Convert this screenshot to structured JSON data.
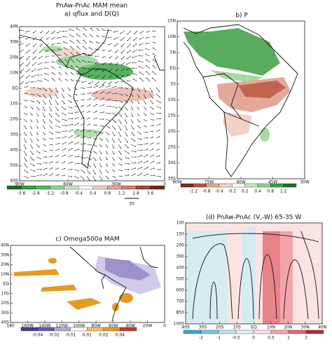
{
  "panels": {
    "a": {
      "title": "PnAw-PnAc MAM mean",
      "subtitle": "a) qflux and D(Q)",
      "yticks": [
        "40N",
        "30N",
        "20N",
        "10N",
        "EQ",
        "10S",
        "20S",
        "30S",
        "40S",
        "50S",
        "60S"
      ],
      "xticks": [
        "90W",
        "60W",
        "30W",
        "0"
      ],
      "colorbar": [
        "-3.6",
        "-2.8",
        "-1.2",
        "-0.8",
        "-0.4",
        "0.4",
        "0.8",
        "1.2",
        "2.8",
        "3.6"
      ],
      "ref_vector": "30"
    },
    "b": {
      "title": "b) P",
      "yticks": [
        "15N",
        "10N",
        "5N",
        "EQ",
        "5S",
        "10S",
        "15S",
        "20S",
        "25S",
        "30S",
        "35S"
      ],
      "xticks": [
        "90W",
        "75W",
        "60W",
        "45W",
        "30W"
      ],
      "colorbar": [
        "-1.2",
        "-0.8",
        "-0.4",
        "-0.2",
        "0.2",
        "0.4",
        "0.8",
        "1.2"
      ]
    },
    "c": {
      "title": "c) Omega500a MAM",
      "yticks": [
        "40N",
        "30N",
        "20N",
        "10N",
        "EQ",
        "10S",
        "20S",
        "30S",
        "40S"
      ],
      "xticks": [
        "180",
        "160W",
        "140W",
        "120W",
        "100W",
        "80W",
        "60W",
        "40W",
        "20W",
        "0"
      ],
      "colorbar": [
        "-0.04",
        "-0.02",
        "-0.01",
        "0.01",
        "0.02",
        "0.04"
      ]
    },
    "d": {
      "title": "(d) PnAw-PnAc (V,-W) 65-35 W",
      "yticks": [
        "100",
        "150",
        "200",
        "300",
        "400",
        "500",
        "600",
        "700",
        "850",
        "1000"
      ],
      "xticks": [
        "40S",
        "30S",
        "20S",
        "10S",
        "EQ",
        "10N",
        "20N",
        "30N",
        "40N"
      ],
      "colorbar": [
        "-2",
        "-1",
        "-0.5",
        "0",
        "0.5",
        "1",
        "2"
      ]
    }
  }
}
